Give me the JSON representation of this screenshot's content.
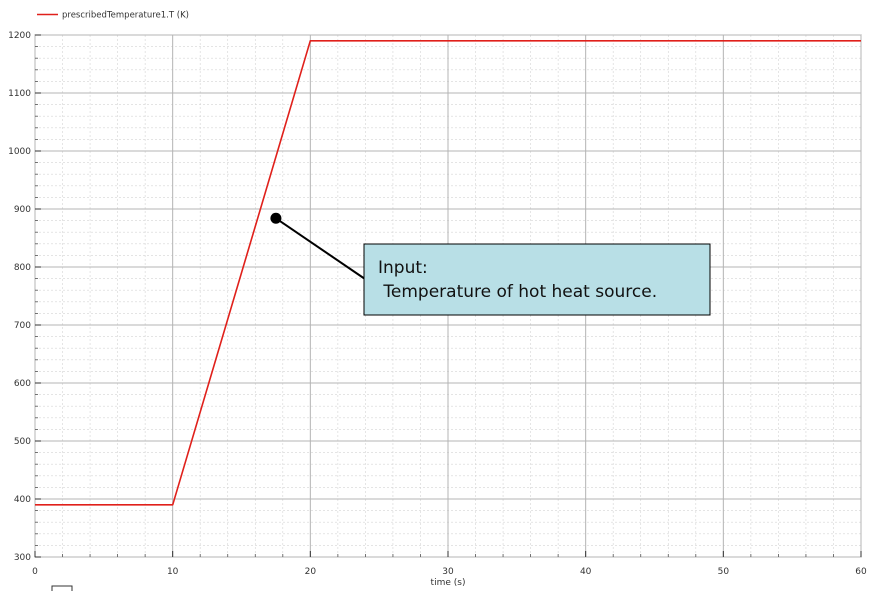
{
  "chart_data": {
    "type": "line",
    "title": "",
    "xlabel": "time (s)",
    "ylabel": "",
    "xlim": [
      0,
      60
    ],
    "ylim": [
      300,
      1200
    ],
    "xticks": [
      0,
      10,
      20,
      30,
      40,
      50,
      60
    ],
    "yticks": [
      300,
      400,
      500,
      600,
      700,
      800,
      900,
      1000,
      1100,
      1200
    ],
    "grid": true,
    "legend_position": "top-left",
    "series": [
      {
        "name": "prescribedTemperature1.T (K)",
        "color": "#e0201b",
        "x": [
          0,
          10,
          20,
          60
        ],
        "y": [
          390,
          390,
          1190,
          1190
        ]
      }
    ],
    "annotations": [
      {
        "lines": [
          "Input:",
          " Temperature of hot heat source."
        ],
        "point": {
          "x": 17.5,
          "y": 884
        },
        "box_color": "#b8dfe6"
      }
    ]
  },
  "legend": {
    "label": "prescribedTemperature1.T (K)",
    "color": "#e0201b"
  },
  "axes": {
    "xlabel": "time (s)"
  },
  "callout": {
    "line1": "Input:",
    "line2": " Temperature of hot heat source."
  }
}
